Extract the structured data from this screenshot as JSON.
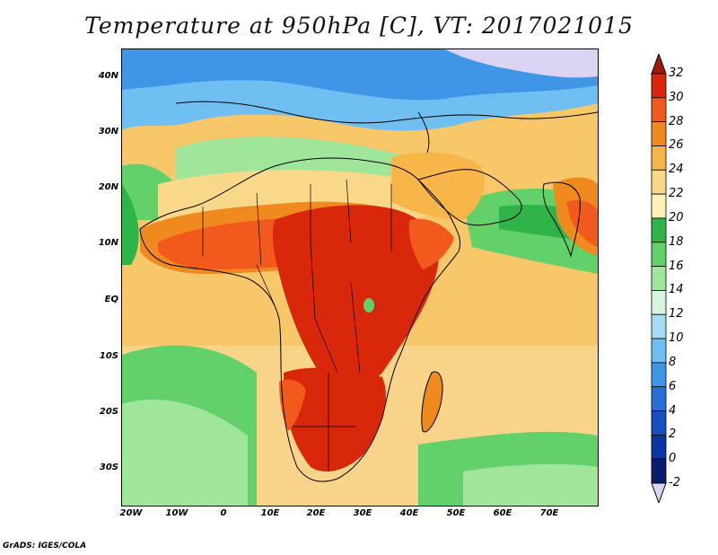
{
  "title": "Temperature at 950hPa [C], VT: 2017021015",
  "credit": "GrADS: IGES/COLA",
  "lat_labels": [
    "40N",
    "30N",
    "20N",
    "10N",
    "EQ",
    "10S",
    "20S",
    "30S"
  ],
  "lon_labels": [
    "20W",
    "10W",
    "0",
    "10E",
    "20E",
    "30E",
    "40E",
    "50E",
    "60E",
    "70E"
  ],
  "colorbar": {
    "levels": [
      "32",
      "30",
      "28",
      "26",
      "24",
      "22",
      "20",
      "18",
      "16",
      "14",
      "12",
      "10",
      "8",
      "6",
      "4",
      "2",
      "0",
      "-2"
    ],
    "colors": [
      "#a01c0a",
      "#d9270b",
      "#f2591c",
      "#f08a1f",
      "#f8b548",
      "#fad88a",
      "#fdf2b8",
      "#2fb44a",
      "#62d16a",
      "#9fe59a",
      "#d6f5e1",
      "#a6dcf5",
      "#6fbff2",
      "#3f95e6",
      "#2670d8",
      "#174fc0",
      "#0c34a2",
      "#0a1c6e",
      "#dcd4f5"
    ]
  },
  "map_colors": {
    "ocean_cold": "#3f95e6",
    "ocean_cool": "#6fbff2",
    "ocean_mild": "#9fe59a",
    "ocean_green": "#62d16a",
    "ocean_warm": "#fad88a",
    "land_hot": "#d9270b",
    "land_warm": "#f2591c",
    "land_mild": "#f08a1f",
    "snow": "#dcd4f5"
  }
}
